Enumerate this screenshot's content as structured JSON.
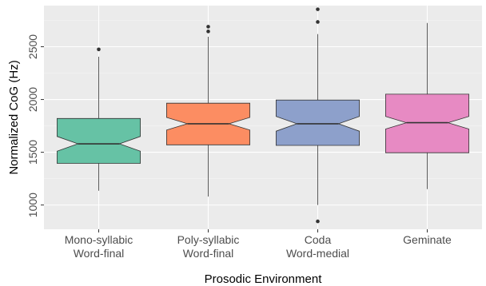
{
  "chart_data": {
    "type": "box",
    "notched": true,
    "xlabel": "Prosodic Environment",
    "ylabel": "Normalized CoG (Hz)",
    "ylim": [
      770,
      2890
    ],
    "yticks": [
      1000,
      1500,
      2000,
      2500
    ],
    "grid": true,
    "legend": "none",
    "categories": [
      [
        "Mono-syllabic",
        "Word-final"
      ],
      [
        "Poly-syllabic",
        "Word-final"
      ],
      [
        "Coda",
        "Word-medial"
      ],
      [
        "Geminate"
      ]
    ],
    "boxes": [
      {
        "q1": 1395,
        "median": 1580,
        "q3": 1820,
        "whisker_low": 1135,
        "whisker_high": 2405,
        "notch_low": 1510,
        "notch_high": 1650,
        "outliers": [
          2475
        ],
        "color": "#66c2a5"
      },
      {
        "q1": 1570,
        "median": 1770,
        "q3": 1965,
        "whisker_low": 1080,
        "whisker_high": 2595,
        "notch_low": 1710,
        "notch_high": 1830,
        "outliers": [
          2645,
          2690
        ],
        "color": "#fc8d62"
      },
      {
        "q1": 1565,
        "median": 1770,
        "q3": 1995,
        "whisker_low": 1000,
        "whisker_high": 2620,
        "notch_low": 1700,
        "notch_high": 1840,
        "outliers": [
          845,
          2735,
          2855
        ],
        "color": "#8da0cb"
      },
      {
        "q1": 1495,
        "median": 1780,
        "q3": 2050,
        "whisker_low": 1150,
        "whisker_high": 2725,
        "notch_low": 1720,
        "notch_high": 1840,
        "outliers": [],
        "color": "#e78ac3"
      }
    ]
  }
}
